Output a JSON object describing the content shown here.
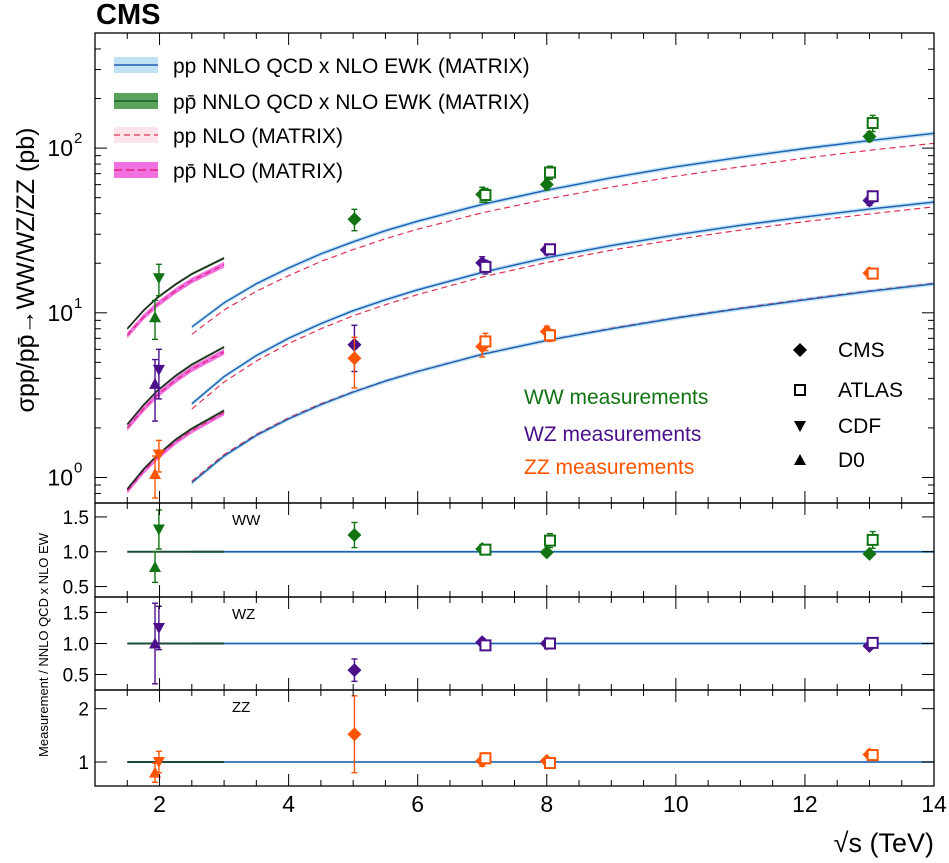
{
  "experiment_label": "CMS",
  "x_axis": {
    "label": "√s  (TeV)",
    "range": [
      1,
      14
    ],
    "ticks": [
      2,
      4,
      6,
      8,
      10,
      12,
      14
    ],
    "tick_labels": [
      "2",
      "4",
      "6",
      "8",
      "10",
      "12",
      "14"
    ]
  },
  "legend_models": [
    {
      "label": "pp NNLO QCD x NLO EWK (MATRIX)",
      "key": "pp_nnlo"
    },
    {
      "label": "pp̄ NNLO QCD x NLO EWK (MATRIX)",
      "key": "ppbar_nnlo"
    },
    {
      "label": "pp NLO (MATRIX)",
      "key": "pp_nlo"
    },
    {
      "label": "pp̄ NLO (MATRIX)",
      "key": "ppbar_nlo"
    }
  ],
  "legend_measurements": [
    {
      "label": "WW measurements",
      "color": "#127312"
    },
    {
      "label": "WZ measurements",
      "color": "#4b0f8a"
    },
    {
      "label": "ZZ measurements",
      "color": "#ff5500"
    }
  ],
  "legend_experiments": [
    {
      "label": "CMS",
      "marker": "diamond"
    },
    {
      "label": "ATLAS",
      "marker": "square-open"
    },
    {
      "label": "CDF",
      "marker": "triangle-down"
    },
    {
      "label": "D0",
      "marker": "triangle-up"
    }
  ],
  "colors": {
    "WW": "#127312",
    "WZ": "#4b0f8a",
    "ZZ": "#ff5500",
    "pp_nnlo_line": "#1f5fb0",
    "pp_nnlo_band": "#bfe2f5",
    "ppbar_nnlo_line": "#1a5a2a",
    "ppbar_nnlo_band": "#5aa35a",
    "pp_nlo_line": "#e03050",
    "ppbar_nlo_line": "#e0207a",
    "ppbar_nlo_band": "#f070e0"
  },
  "chart_data": {
    "type": "scatter",
    "main": {
      "ylabel": "σpp/pp̄→WW/WZ/ZZ  (pb)",
      "y_scale": "log",
      "ylim": [
        0.7,
        500
      ],
      "y_ticks": [
        1,
        10,
        100
      ],
      "y_tick_labels": [
        "10",
        "10",
        "10"
      ],
      "y_tick_exponents": [
        "0",
        "1",
        "2"
      ],
      "theory": {
        "pp_x": [
          2.5,
          3,
          3.5,
          4,
          4.5,
          5,
          5.5,
          6,
          7,
          8,
          9,
          10,
          11,
          12,
          13,
          14
        ],
        "ppbar_x": [
          1.5,
          1.75,
          1.96,
          2.25,
          2.5,
          3
        ],
        "WW": {
          "pp_nnlo": [
            8.2,
            11.5,
            15,
            18.7,
            22.8,
            27,
            31.5,
            36,
            45.5,
            55.5,
            66,
            77,
            88,
            99.5,
            111,
            123
          ],
          "pp_nlo": [
            7.4,
            10.4,
            13.5,
            16.8,
            20.5,
            24.2,
            28.2,
            32.2,
            40.5,
            49,
            58,
            67.5,
            77,
            87,
            97,
            107
          ],
          "ppbar_nnlo": [
            8.0,
            10.3,
            12.3,
            14.9,
            17.2,
            21.5
          ],
          "ppbar_nlo": [
            7.3,
            9.4,
            11.2,
            13.6,
            15.7,
            19.6
          ]
        },
        "WZ": {
          "pp_nnlo": [
            2.8,
            4.1,
            5.5,
            7.0,
            8.6,
            10.3,
            12.0,
            13.8,
            17.6,
            21.6,
            25.6,
            29.7,
            34,
            38.2,
            42.6,
            47
          ],
          "pp_nlo": [
            2.6,
            3.8,
            5.1,
            6.5,
            8.0,
            9.6,
            11.2,
            12.9,
            16.5,
            20.2,
            24,
            27.9,
            31.8,
            35.8,
            39.8,
            44
          ],
          "ppbar_nnlo": [
            2.1,
            2.75,
            3.35,
            4.15,
            4.85,
            6.2
          ],
          "ppbar_nlo": [
            2.0,
            2.6,
            3.15,
            3.9,
            4.55,
            5.8
          ]
        },
        "ZZ": {
          "pp_nnlo": [
            0.93,
            1.35,
            1.8,
            2.27,
            2.77,
            3.3,
            3.85,
            4.4,
            5.6,
            6.8,
            8.0,
            9.3,
            10.6,
            12.0,
            13.5,
            15
          ],
          "pp_nlo": [
            0.95,
            1.38,
            1.83,
            2.3,
            2.8,
            3.32,
            3.86,
            4.42,
            5.6,
            6.8,
            8.05,
            9.35,
            10.7,
            12.1,
            13.6,
            15.1
          ],
          "ppbar_nnlo": [
            0.85,
            1.12,
            1.36,
            1.7,
            1.98,
            2.55
          ],
          "ppbar_nlo": [
            0.83,
            1.09,
            1.32,
            1.65,
            1.93,
            2.48
          ]
        }
      },
      "measurements": [
        {
          "process": "WW",
          "experiment": "CMS",
          "x": 5.02,
          "y": 37,
          "err": 5.5
        },
        {
          "process": "WW",
          "experiment": "CMS",
          "x": 7,
          "y": 52.4,
          "err": 5.5
        },
        {
          "process": "WW",
          "experiment": "CMS",
          "x": 8,
          "y": 60.1,
          "err": 4.5
        },
        {
          "process": "WW",
          "experiment": "CMS",
          "x": 13,
          "y": 117.6,
          "err": 8
        },
        {
          "process": "WW",
          "experiment": "ATLAS",
          "x": 7.05,
          "y": 51.9,
          "err": 5
        },
        {
          "process": "WW",
          "experiment": "ATLAS",
          "x": 8.05,
          "y": 71.1,
          "err": 6.5
        },
        {
          "process": "WW",
          "experiment": "ATLAS",
          "x": 13.05,
          "y": 142,
          "err": 16
        },
        {
          "process": "WW",
          "experiment": "CDF",
          "x": 1.99,
          "y": 16.2,
          "err": 3.5
        },
        {
          "process": "WW",
          "experiment": "D0",
          "x": 1.93,
          "y": 9.4,
          "err": 2.5
        },
        {
          "process": "WZ",
          "experiment": "CMS",
          "x": 5.02,
          "y": 6.4,
          "err": 2.0
        },
        {
          "process": "WZ",
          "experiment": "CMS",
          "x": 7,
          "y": 20.1,
          "err": 1.8
        },
        {
          "process": "WZ",
          "experiment": "CMS",
          "x": 8,
          "y": 24.1,
          "err": 1.5
        },
        {
          "process": "WZ",
          "experiment": "CMS",
          "x": 13,
          "y": 48.1,
          "err": 3.2
        },
        {
          "process": "WZ",
          "experiment": "ATLAS",
          "x": 7.05,
          "y": 19.0,
          "err": 1.8
        },
        {
          "process": "WZ",
          "experiment": "ATLAS",
          "x": 8.05,
          "y": 24.3,
          "err": 1.3
        },
        {
          "process": "WZ",
          "experiment": "ATLAS",
          "x": 13.05,
          "y": 51,
          "err": 3
        },
        {
          "process": "WZ",
          "experiment": "CDF",
          "x": 1.99,
          "y": 4.5,
          "err": 1.5
        },
        {
          "process": "WZ",
          "experiment": "D0",
          "x": 1.93,
          "y": 3.7,
          "err": 1.5
        },
        {
          "process": "ZZ",
          "experiment": "CMS",
          "x": 5.02,
          "y": 5.3,
          "err": 1.8
        },
        {
          "process": "ZZ",
          "experiment": "CMS",
          "x": 7,
          "y": 6.24,
          "err": 0.85
        },
        {
          "process": "ZZ",
          "experiment": "CMS",
          "x": 8,
          "y": 7.7,
          "err": 0.6
        },
        {
          "process": "ZZ",
          "experiment": "CMS",
          "x": 13,
          "y": 17.4,
          "err": 1.0
        },
        {
          "process": "ZZ",
          "experiment": "ATLAS",
          "x": 7.05,
          "y": 6.7,
          "err": 0.8
        },
        {
          "process": "ZZ",
          "experiment": "ATLAS",
          "x": 8.05,
          "y": 7.3,
          "err": 0.6
        },
        {
          "process": "ZZ",
          "experiment": "ATLAS",
          "x": 13.05,
          "y": 17.3,
          "err": 0.8
        },
        {
          "process": "ZZ",
          "experiment": "CDF",
          "x": 1.99,
          "y": 1.38,
          "err": 0.3
        },
        {
          "process": "ZZ",
          "experiment": "D0",
          "x": 1.93,
          "y": 1.05,
          "err": 0.3
        }
      ]
    },
    "ratios": {
      "ylabel": "Measurement / NNLO QCD x NLO EW",
      "panels": [
        {
          "process": "WW",
          "label": "WW",
          "ylim": [
            0.35,
            1.7
          ],
          "y_ticks": [
            0.5,
            1.0,
            1.5
          ],
          "y_tick_labels": [
            "0.5",
            "1.0",
            "1.5"
          ],
          "points": [
            {
              "experiment": "D0",
              "x": 1.93,
              "y": 0.78,
              "err": 0.22
            },
            {
              "experiment": "CDF",
              "x": 1.99,
              "y": 1.32,
              "err": 0.28
            },
            {
              "experiment": "CMS",
              "x": 5.02,
              "y": 1.24,
              "err": 0.18
            },
            {
              "experiment": "CMS",
              "x": 7,
              "y": 1.04,
              "err": 0.06
            },
            {
              "experiment": "ATLAS",
              "x": 7.05,
              "y": 1.03,
              "err": 0.07
            },
            {
              "experiment": "CMS",
              "x": 8,
              "y": 0.99,
              "err": 0.05
            },
            {
              "experiment": "ATLAS",
              "x": 8.05,
              "y": 1.16,
              "err": 0.1
            },
            {
              "experiment": "CMS",
              "x": 13,
              "y": 0.97,
              "err": 0.05
            },
            {
              "experiment": "ATLAS",
              "x": 13.05,
              "y": 1.17,
              "err": 0.12
            }
          ]
        },
        {
          "process": "WZ",
          "label": "WZ",
          "ylim": [
            0.25,
            1.75
          ],
          "y_ticks": [
            0.5,
            1.0,
            1.5
          ],
          "y_tick_labels": [
            "0.5",
            "1.0",
            "1.5"
          ],
          "points": [
            {
              "experiment": "D0",
              "x": 1.93,
              "y": 1.0,
              "err": 0.65
            },
            {
              "experiment": "CDF",
              "x": 1.99,
              "y": 1.25,
              "err": 0.35
            },
            {
              "experiment": "CMS",
              "x": 5.02,
              "y": 0.57,
              "err": 0.18
            },
            {
              "experiment": "CMS",
              "x": 7,
              "y": 1.02,
              "err": 0.06
            },
            {
              "experiment": "ATLAS",
              "x": 7.05,
              "y": 0.97,
              "err": 0.06
            },
            {
              "experiment": "CMS",
              "x": 8,
              "y": 1.0,
              "err": 0.05
            },
            {
              "experiment": "ATLAS",
              "x": 8.05,
              "y": 1.0,
              "err": 0.05
            },
            {
              "experiment": "CMS",
              "x": 13,
              "y": 0.96,
              "err": 0.05
            },
            {
              "experiment": "ATLAS",
              "x": 13.05,
              "y": 1.01,
              "err": 0.05
            }
          ]
        },
        {
          "process": "ZZ",
          "label": "ZZ",
          "ylim": [
            0.55,
            2.35
          ],
          "y_ticks": [
            1,
            2
          ],
          "y_tick_labels": [
            "1",
            "2"
          ],
          "points": [
            {
              "experiment": "D0",
              "x": 1.93,
              "y": 0.8,
              "err": 0.18
            },
            {
              "experiment": "CDF",
              "x": 1.99,
              "y": 1.0,
              "err": 0.2
            },
            {
              "experiment": "CMS",
              "x": 5.02,
              "y": 1.52,
              "err": 0.72
            },
            {
              "experiment": "CMS",
              "x": 7,
              "y": 1.02,
              "err": 0.1
            },
            {
              "experiment": "ATLAS",
              "x": 7.05,
              "y": 1.07,
              "err": 0.1
            },
            {
              "experiment": "CMS",
              "x": 8,
              "y": 1.02,
              "err": 0.07
            },
            {
              "experiment": "ATLAS",
              "x": 8.05,
              "y": 0.98,
              "err": 0.07
            },
            {
              "experiment": "CMS",
              "x": 13,
              "y": 1.14,
              "err": 0.06
            },
            {
              "experiment": "ATLAS",
              "x": 13.05,
              "y": 1.13,
              "err": 0.06
            }
          ]
        }
      ]
    }
  }
}
